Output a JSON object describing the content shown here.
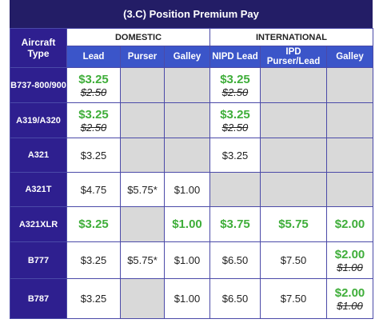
{
  "header": {
    "title": "(3.C)  Position Premium Pay"
  },
  "table": {
    "corner": "Aircraft Type",
    "groups": [
      {
        "label": "DOMESTIC",
        "span": 3
      },
      {
        "label": "INTERNATIONAL",
        "span": 3
      }
    ],
    "columns": [
      "Lead",
      "Purser",
      "Galley",
      "NIPD Lead",
      "IPD Purser/Lead",
      "Galley"
    ],
    "highlight_color": "#3fae3a",
    "empty_color": "#d9d9d9",
    "rows": [
      {
        "aircraft": "B737-800/900",
        "cells": [
          {
            "value": "$3.25",
            "highlight": true,
            "was": "$2.50"
          },
          null,
          null,
          {
            "value": "$3.25",
            "highlight": true,
            "was": "$2.50"
          },
          null,
          null
        ]
      },
      {
        "aircraft": "A319/A320",
        "cells": [
          {
            "value": "$3.25",
            "highlight": true,
            "was": "$2.50"
          },
          null,
          null,
          {
            "value": "$3.25",
            "highlight": true,
            "was": "$2.50"
          },
          null,
          null
        ]
      },
      {
        "aircraft": "A321",
        "cells": [
          {
            "value": "$3.25"
          },
          null,
          null,
          {
            "value": "$3.25"
          },
          null,
          null
        ]
      },
      {
        "aircraft": "A321T",
        "cells": [
          {
            "value": "$4.75"
          },
          {
            "value": "$5.75*"
          },
          {
            "value": "$1.00"
          },
          null,
          null,
          null
        ]
      },
      {
        "aircraft": "A321XLR",
        "cells": [
          {
            "value": "$3.25",
            "highlight": true
          },
          null,
          {
            "value": "$1.00",
            "highlight": true
          },
          {
            "value": "$3.75",
            "highlight": true
          },
          {
            "value": "$5.75",
            "highlight": true
          },
          {
            "value": "$2.00",
            "highlight": true
          }
        ]
      },
      {
        "aircraft": "B777",
        "cells": [
          {
            "value": "$3.25"
          },
          {
            "value": "$5.75*"
          },
          {
            "value": "$1.00"
          },
          {
            "value": "$6.50"
          },
          {
            "value": "$7.50"
          },
          {
            "value": "$2.00",
            "highlight": true,
            "was": "$1.00"
          }
        ]
      },
      {
        "aircraft": "B787",
        "cells": [
          {
            "value": "$3.25"
          },
          null,
          {
            "value": "$1.00"
          },
          {
            "value": "$6.50"
          },
          {
            "value": "$7.50"
          },
          {
            "value": "$2.00",
            "highlight": true,
            "was": "$1.00"
          }
        ]
      }
    ]
  }
}
